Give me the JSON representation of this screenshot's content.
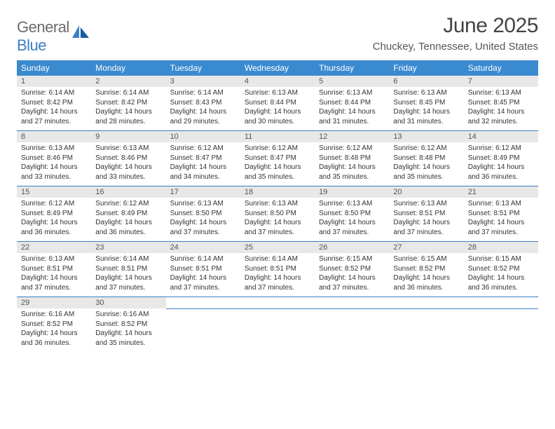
{
  "logo": {
    "top": "General",
    "bottom": "Blue"
  },
  "title": "June 2025",
  "location": "Chuckey, Tennessee, United States",
  "day_headers": [
    "Sunday",
    "Monday",
    "Tuesday",
    "Wednesday",
    "Thursday",
    "Friday",
    "Saturday"
  ],
  "colors": {
    "header_bg": "#3a8ad0",
    "header_text": "#ffffff",
    "numrow_bg": "#e8e8e8",
    "border": "#3a7fc4",
    "logo_gray": "#6b6b6b",
    "logo_blue": "#3a7fc4",
    "title_color": "#444444",
    "body_text": "#333333"
  },
  "weeks": [
    [
      {
        "num": "1",
        "sunrise": "6:14 AM",
        "sunset": "8:42 PM",
        "daylight": "14 hours and 27 minutes."
      },
      {
        "num": "2",
        "sunrise": "6:14 AM",
        "sunset": "8:42 PM",
        "daylight": "14 hours and 28 minutes."
      },
      {
        "num": "3",
        "sunrise": "6:14 AM",
        "sunset": "8:43 PM",
        "daylight": "14 hours and 29 minutes."
      },
      {
        "num": "4",
        "sunrise": "6:13 AM",
        "sunset": "8:44 PM",
        "daylight": "14 hours and 30 minutes."
      },
      {
        "num": "5",
        "sunrise": "6:13 AM",
        "sunset": "8:44 PM",
        "daylight": "14 hours and 31 minutes."
      },
      {
        "num": "6",
        "sunrise": "6:13 AM",
        "sunset": "8:45 PM",
        "daylight": "14 hours and 31 minutes."
      },
      {
        "num": "7",
        "sunrise": "6:13 AM",
        "sunset": "8:45 PM",
        "daylight": "14 hours and 32 minutes."
      }
    ],
    [
      {
        "num": "8",
        "sunrise": "6:13 AM",
        "sunset": "8:46 PM",
        "daylight": "14 hours and 33 minutes."
      },
      {
        "num": "9",
        "sunrise": "6:13 AM",
        "sunset": "8:46 PM",
        "daylight": "14 hours and 33 minutes."
      },
      {
        "num": "10",
        "sunrise": "6:12 AM",
        "sunset": "8:47 PM",
        "daylight": "14 hours and 34 minutes."
      },
      {
        "num": "11",
        "sunrise": "6:12 AM",
        "sunset": "8:47 PM",
        "daylight": "14 hours and 35 minutes."
      },
      {
        "num": "12",
        "sunrise": "6:12 AM",
        "sunset": "8:48 PM",
        "daylight": "14 hours and 35 minutes."
      },
      {
        "num": "13",
        "sunrise": "6:12 AM",
        "sunset": "8:48 PM",
        "daylight": "14 hours and 35 minutes."
      },
      {
        "num": "14",
        "sunrise": "6:12 AM",
        "sunset": "8:49 PM",
        "daylight": "14 hours and 36 minutes."
      }
    ],
    [
      {
        "num": "15",
        "sunrise": "6:12 AM",
        "sunset": "8:49 PM",
        "daylight": "14 hours and 36 minutes."
      },
      {
        "num": "16",
        "sunrise": "6:12 AM",
        "sunset": "8:49 PM",
        "daylight": "14 hours and 36 minutes."
      },
      {
        "num": "17",
        "sunrise": "6:13 AM",
        "sunset": "8:50 PM",
        "daylight": "14 hours and 37 minutes."
      },
      {
        "num": "18",
        "sunrise": "6:13 AM",
        "sunset": "8:50 PM",
        "daylight": "14 hours and 37 minutes."
      },
      {
        "num": "19",
        "sunrise": "6:13 AM",
        "sunset": "8:50 PM",
        "daylight": "14 hours and 37 minutes."
      },
      {
        "num": "20",
        "sunrise": "6:13 AM",
        "sunset": "8:51 PM",
        "daylight": "14 hours and 37 minutes."
      },
      {
        "num": "21",
        "sunrise": "6:13 AM",
        "sunset": "8:51 PM",
        "daylight": "14 hours and 37 minutes."
      }
    ],
    [
      {
        "num": "22",
        "sunrise": "6:13 AM",
        "sunset": "8:51 PM",
        "daylight": "14 hours and 37 minutes."
      },
      {
        "num": "23",
        "sunrise": "6:14 AM",
        "sunset": "8:51 PM",
        "daylight": "14 hours and 37 minutes."
      },
      {
        "num": "24",
        "sunrise": "6:14 AM",
        "sunset": "8:51 PM",
        "daylight": "14 hours and 37 minutes."
      },
      {
        "num": "25",
        "sunrise": "6:14 AM",
        "sunset": "8:51 PM",
        "daylight": "14 hours and 37 minutes."
      },
      {
        "num": "26",
        "sunrise": "6:15 AM",
        "sunset": "8:52 PM",
        "daylight": "14 hours and 37 minutes."
      },
      {
        "num": "27",
        "sunrise": "6:15 AM",
        "sunset": "8:52 PM",
        "daylight": "14 hours and 36 minutes."
      },
      {
        "num": "28",
        "sunrise": "6:15 AM",
        "sunset": "8:52 PM",
        "daylight": "14 hours and 36 minutes."
      }
    ],
    [
      {
        "num": "29",
        "sunrise": "6:16 AM",
        "sunset": "8:52 PM",
        "daylight": "14 hours and 36 minutes."
      },
      {
        "num": "30",
        "sunrise": "6:16 AM",
        "sunset": "8:52 PM",
        "daylight": "14 hours and 35 minutes."
      },
      null,
      null,
      null,
      null,
      null
    ]
  ],
  "labels": {
    "sunrise": "Sunrise: ",
    "sunset": "Sunset: ",
    "daylight": "Daylight: "
  }
}
